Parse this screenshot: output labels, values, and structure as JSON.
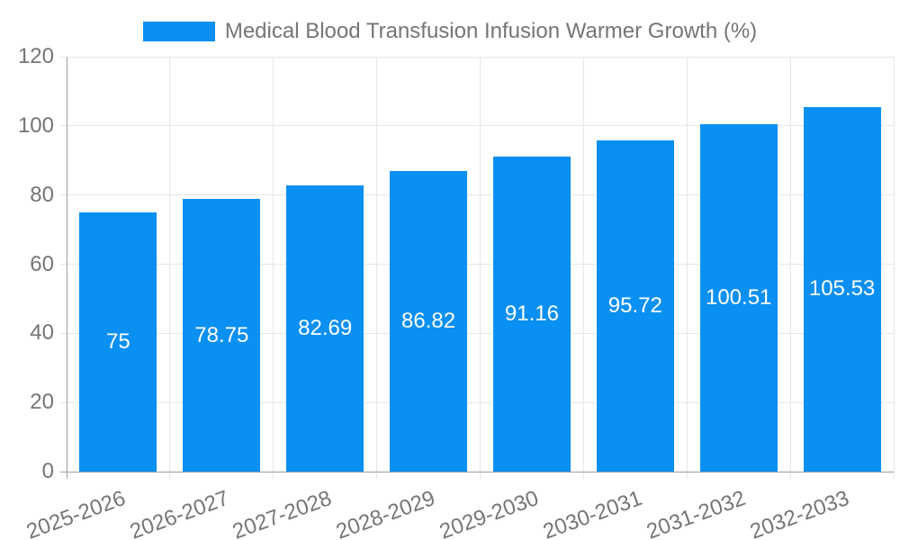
{
  "chart_data": {
    "type": "bar",
    "title": "Medical Blood Transfusion Infusion Warmer Growth (%)",
    "categories": [
      "2025-2026",
      "2026-2027",
      "2027-2028",
      "2028-2029",
      "2029-2030",
      "2030-2031",
      "2031-2032",
      "2032-2033"
    ],
    "values": [
      75,
      78.75,
      82.69,
      86.82,
      91.16,
      95.72,
      100.51,
      105.53
    ],
    "value_labels": [
      "75",
      "78.75",
      "82.69",
      "86.82",
      "91.16",
      "95.72",
      "100.51",
      "105.53"
    ],
    "xlabel": "",
    "ylabel": "",
    "ylim": [
      0,
      120
    ],
    "yticks": [
      0,
      20,
      40,
      60,
      80,
      100,
      120
    ],
    "grid": true,
    "legend_position": "top",
    "bar_color": "#0a8ff2",
    "label_color": "#757575",
    "grid_color": "#e6e6e6",
    "axis_color": "#9e9e9e",
    "value_label_color": "#ffffff"
  }
}
